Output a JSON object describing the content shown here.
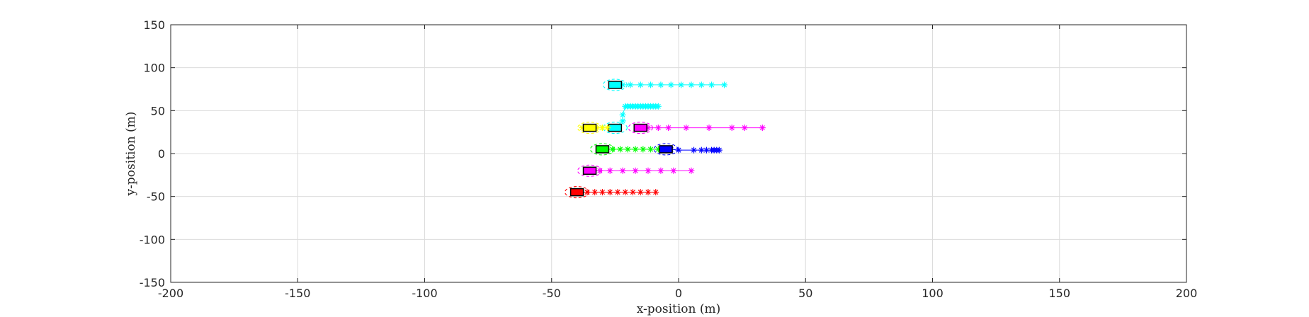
{
  "chart_data": {
    "type": "scatter",
    "xlabel": "x-position (m)",
    "ylabel": "y-position (m)",
    "xlim": [
      -200,
      200
    ],
    "ylim": [
      -150,
      150
    ],
    "xticks": [
      -200,
      -150,
      -100,
      -50,
      0,
      50,
      100,
      150,
      200
    ],
    "yticks": [
      -150,
      -100,
      -50,
      0,
      50,
      100,
      150
    ],
    "xtick_labels": [
      "-200",
      "-150",
      "-100",
      "-50",
      "0",
      "50",
      "100",
      "150",
      "200"
    ],
    "ytick_labels": [
      "-150",
      "-100",
      "-50",
      "0",
      "50",
      "100",
      "150"
    ],
    "grid": true,
    "vehicles": [
      {
        "color": "#00ffff",
        "x": -25,
        "y": 80,
        "trajectory": {
          "x": [
            -22,
            -19,
            -15,
            -11,
            -7,
            -3,
            1,
            5,
            9,
            13,
            18
          ],
          "y": [
            80,
            80,
            80,
            80,
            80,
            80,
            80,
            80,
            80,
            80,
            80
          ]
        }
      },
      {
        "color": "#00ffff",
        "x": -25,
        "y": 30,
        "trajectory": {
          "x": [
            -22,
            -22,
            -21,
            -20,
            -19,
            -18,
            -17,
            -16,
            -15,
            -14,
            -13,
            -12,
            -11,
            -10,
            -9,
            -8
          ],
          "y": [
            38,
            45,
            55,
            55,
            55,
            55,
            55,
            55,
            55,
            55,
            55,
            55,
            55,
            55,
            55,
            55
          ]
        }
      },
      {
        "color": "#ffff00",
        "x": -35,
        "y": 30,
        "trajectory": {
          "x": [
            -38,
            -36,
            -32,
            -30,
            -28
          ],
          "y": [
            30,
            30,
            30,
            30,
            30
          ]
        }
      },
      {
        "color": "#ff00ff",
        "x": -15,
        "y": 30,
        "trajectory": {
          "x": [
            -12,
            -8,
            -4,
            3,
            12,
            21,
            26,
            33
          ],
          "y": [
            30,
            30,
            30,
            30,
            30,
            30,
            30,
            30
          ]
        }
      },
      {
        "color": "#00ff00",
        "x": -30,
        "y": 5,
        "trajectory": {
          "x": [
            -26,
            -23,
            -20,
            -17,
            -14,
            -11,
            -8
          ],
          "y": [
            5,
            5,
            5,
            5,
            5,
            5,
            5
          ]
        }
      },
      {
        "color": "#0000ff",
        "x": -5,
        "y": 5,
        "trajectory": {
          "x": [
            -5,
            -3,
            0,
            6,
            9,
            11,
            13,
            14,
            15,
            16
          ],
          "y": [
            5,
            5,
            4,
            4,
            4,
            4,
            4,
            4,
            4,
            4
          ]
        }
      },
      {
        "color": "#ff00ff",
        "x": -35,
        "y": -20,
        "trajectory": {
          "x": [
            -31,
            -27,
            -22,
            -17,
            -12,
            -7,
            -2,
            5
          ],
          "y": [
            -20,
            -20,
            -20,
            -20,
            -20,
            -20,
            -20,
            -20
          ]
        }
      },
      {
        "color": "#ff0000",
        "x": -40,
        "y": -45,
        "trajectory": {
          "x": [
            -36,
            -33,
            -30,
            -27,
            -24,
            -21,
            -18,
            -15,
            -12,
            -9
          ],
          "y": [
            -45,
            -45,
            -45,
            -45,
            -45,
            -45,
            -45,
            -45,
            -45,
            -45
          ]
        }
      }
    ]
  }
}
